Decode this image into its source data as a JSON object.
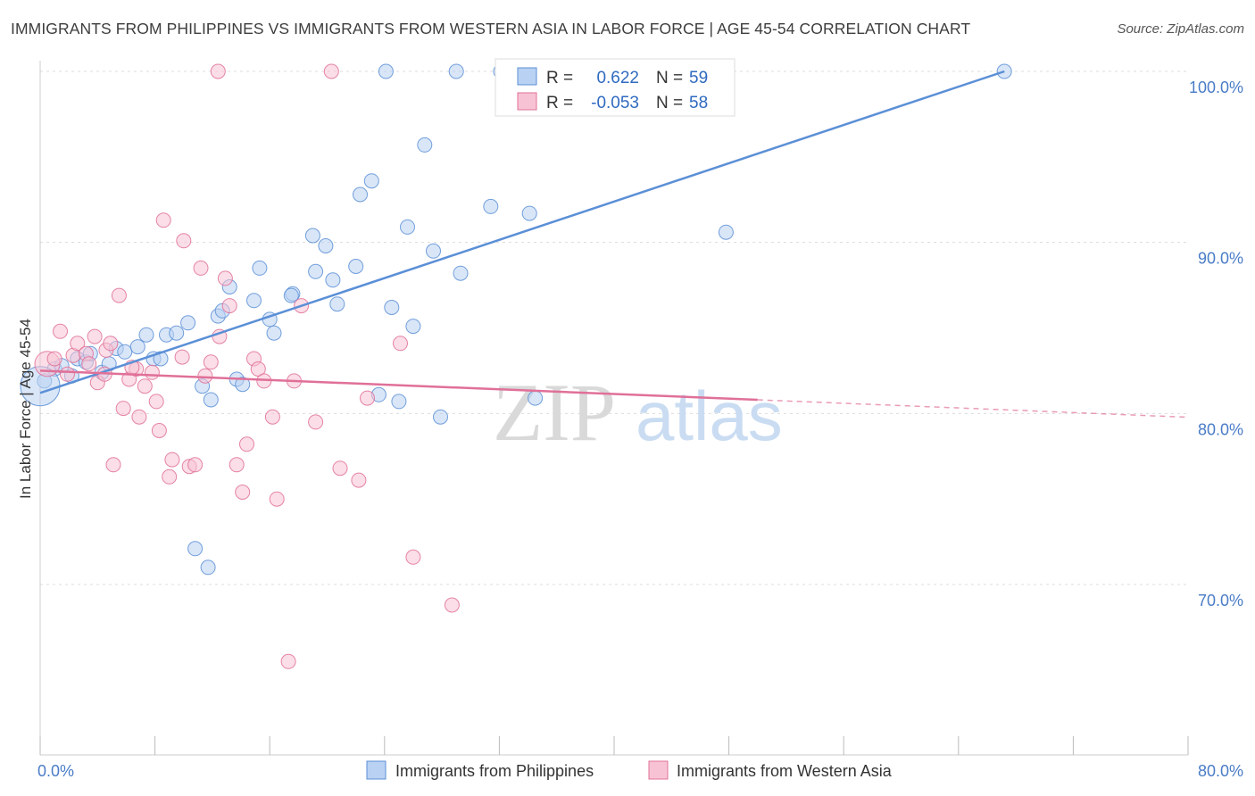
{
  "title": "IMMIGRANTS FROM PHILIPPINES VS IMMIGRANTS FROM WESTERN ASIA IN LABOR FORCE | AGE 45-54 CORRELATION CHART",
  "source": "Source: ZipAtlas.com",
  "watermark": {
    "zip": "ZIP",
    "atlas": "atlas"
  },
  "colors": {
    "blue": "#5b8fd6",
    "blue_fill": "#b9d2f3",
    "pink": "#e07098",
    "pink_fill": "#f7c3d4",
    "tick": "#4a7cc7"
  },
  "chart_data": {
    "type": "scatter",
    "xlabel": "",
    "ylabel": "In Labor Force | Age 45-54",
    "xlim": [
      0,
      80
    ],
    "ylim": [
      60,
      102
    ],
    "x_tick_labels": [
      {
        "v": 0,
        "label": "0.0%"
      },
      {
        "v": 80,
        "label": "80.0%"
      }
    ],
    "y_tick_labels": [
      {
        "v": 70,
        "label": "70.0%"
      },
      {
        "v": 80,
        "label": "80.0%"
      },
      {
        "v": 90,
        "label": "90.0%"
      },
      {
        "v": 100,
        "label": "100.0%"
      }
    ],
    "legend": {
      "rows": [
        {
          "r_label": "R =",
          "r_value": "0.622",
          "n_label": "N =",
          "n_value": "59"
        },
        {
          "r_label": "R =",
          "r_value": "-0.053",
          "n_label": "N =",
          "n_value": "58"
        }
      ]
    },
    "series": [
      {
        "name": "Immigrants from Philippines",
        "color": "#5b8fd6",
        "trend": {
          "x0": 0.0,
          "y0": 81.2,
          "x1": 67.2,
          "y1": 100.0,
          "dash_to": null
        },
        "points": [
          [
            0.3,
            81.9
          ],
          [
            1.0,
            82.6
          ],
          [
            1.5,
            82.8
          ],
          [
            2.2,
            82.2
          ],
          [
            2.6,
            83.2
          ],
          [
            3.2,
            83.0
          ],
          [
            3.5,
            83.5
          ],
          [
            4.3,
            82.4
          ],
          [
            4.8,
            82.9
          ],
          [
            5.3,
            83.8
          ],
          [
            5.9,
            83.6
          ],
          [
            6.8,
            83.9
          ],
          [
            7.4,
            84.6
          ],
          [
            7.9,
            83.2
          ],
          [
            8.4,
            83.2
          ],
          [
            8.8,
            84.6
          ],
          [
            9.5,
            84.7
          ],
          [
            10.3,
            85.3
          ],
          [
            10.8,
            72.1
          ],
          [
            11.7,
            71.0
          ],
          [
            11.3,
            81.6
          ],
          [
            11.9,
            80.8
          ],
          [
            12.4,
            85.7
          ],
          [
            12.7,
            86.0
          ],
          [
            13.2,
            87.4
          ],
          [
            13.7,
            82.0
          ],
          [
            14.1,
            81.7
          ],
          [
            14.9,
            86.6
          ],
          [
            15.3,
            88.5
          ],
          [
            16.0,
            85.5
          ],
          [
            16.3,
            84.7
          ],
          [
            17.6,
            87.0
          ],
          [
            17.5,
            86.9
          ],
          [
            19.0,
            90.4
          ],
          [
            19.2,
            88.3
          ],
          [
            19.9,
            89.8
          ],
          [
            20.4,
            87.8
          ],
          [
            20.7,
            86.4
          ],
          [
            22.0,
            88.6
          ],
          [
            22.3,
            92.8
          ],
          [
            23.1,
            93.6
          ],
          [
            23.6,
            81.1
          ],
          [
            24.1,
            100.0
          ],
          [
            24.5,
            86.2
          ],
          [
            25.0,
            80.7
          ],
          [
            25.6,
            90.9
          ],
          [
            26.0,
            85.1
          ],
          [
            26.8,
            95.7
          ],
          [
            27.4,
            89.5
          ],
          [
            27.9,
            79.8
          ],
          [
            29.0,
            100.0
          ],
          [
            29.3,
            88.2
          ],
          [
            31.4,
            92.1
          ],
          [
            32.1,
            100.0
          ],
          [
            34.1,
            91.7
          ],
          [
            34.5,
            80.9
          ],
          [
            47.8,
            90.6
          ],
          [
            67.2,
            100.0
          ],
          [
            0.0,
            81.6
          ]
        ]
      },
      {
        "name": "Immigrants from Western Asia",
        "color": "#e07098",
        "trend": {
          "x0": 0.0,
          "y0": 82.5,
          "x1": 50.0,
          "y1": 80.8,
          "dash_to": 80.0
        },
        "points": [
          [
            0.5,
            82.9
          ],
          [
            1.0,
            83.2
          ],
          [
            1.4,
            84.8
          ],
          [
            1.9,
            82.3
          ],
          [
            2.3,
            83.4
          ],
          [
            2.6,
            84.1
          ],
          [
            3.2,
            83.5
          ],
          [
            3.4,
            82.9
          ],
          [
            3.8,
            84.5
          ],
          [
            4.0,
            81.8
          ],
          [
            4.6,
            83.7
          ],
          [
            4.9,
            84.1
          ],
          [
            5.1,
            77.0
          ],
          [
            5.5,
            86.9
          ],
          [
            5.8,
            80.3
          ],
          [
            6.2,
            82.0
          ],
          [
            6.7,
            82.6
          ],
          [
            6.9,
            79.8
          ],
          [
            7.3,
            81.6
          ],
          [
            7.8,
            82.4
          ],
          [
            8.1,
            80.7
          ],
          [
            8.3,
            79.0
          ],
          [
            8.6,
            91.3
          ],
          [
            9.0,
            76.3
          ],
          [
            9.2,
            77.3
          ],
          [
            10.0,
            90.1
          ],
          [
            10.4,
            76.9
          ],
          [
            10.8,
            77.0
          ],
          [
            11.2,
            88.5
          ],
          [
            11.5,
            82.2
          ],
          [
            11.9,
            83.0
          ],
          [
            12.4,
            100.0
          ],
          [
            12.5,
            84.5
          ],
          [
            12.9,
            87.9
          ],
          [
            13.2,
            86.3
          ],
          [
            13.7,
            77.0
          ],
          [
            14.1,
            75.4
          ],
          [
            14.4,
            78.2
          ],
          [
            14.9,
            83.2
          ],
          [
            15.2,
            82.6
          ],
          [
            15.6,
            81.9
          ],
          [
            16.2,
            79.8
          ],
          [
            16.5,
            75.0
          ],
          [
            17.3,
            65.5
          ],
          [
            17.7,
            81.9
          ],
          [
            18.2,
            86.3
          ],
          [
            19.2,
            79.5
          ],
          [
            20.3,
            100.0
          ],
          [
            20.9,
            76.8
          ],
          [
            22.2,
            76.1
          ],
          [
            22.8,
            80.9
          ],
          [
            25.1,
            84.1
          ],
          [
            26.0,
            71.6
          ],
          [
            28.7,
            68.8
          ],
          [
            37.0,
            100.0
          ],
          [
            4.5,
            82.3
          ],
          [
            9.9,
            83.3
          ],
          [
            6.4,
            82.7
          ]
        ]
      }
    ]
  }
}
